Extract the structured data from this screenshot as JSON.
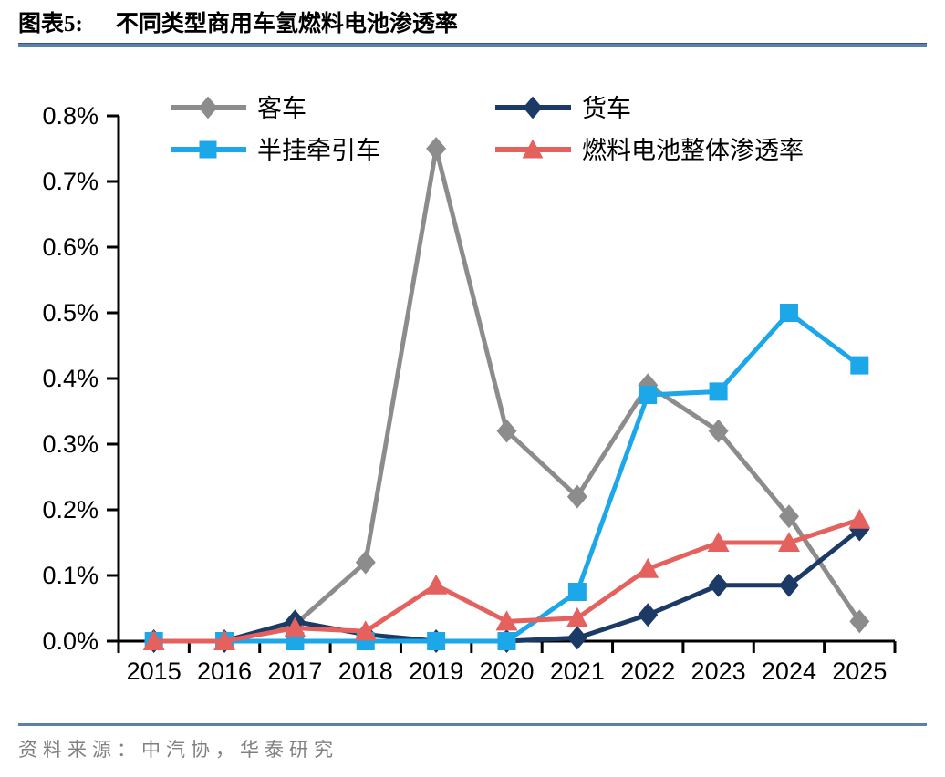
{
  "header": {
    "figure_label": "图表5:",
    "title": "不同类型商用车氢燃料电池渗透率"
  },
  "chart_data": {
    "type": "line",
    "title": "不同类型商用车氢燃料电池渗透率",
    "categories": [
      "2015",
      "2016",
      "2017",
      "2018",
      "2019",
      "2020",
      "2021",
      "2022",
      "2023",
      "2024",
      "2025"
    ],
    "y_ticks": [
      "0.0%",
      "0.1%",
      "0.2%",
      "0.3%",
      "0.4%",
      "0.5%",
      "0.6%",
      "0.7%",
      "0.8%"
    ],
    "ylim": [
      0,
      0.8
    ],
    "unit": "percent",
    "grid": false,
    "legend_position": "top-two-columns",
    "series": [
      {
        "id": "bus",
        "name": "客车",
        "color": "#8C8C8C",
        "marker": "diamond",
        "values": [
          0,
          0,
          0.025,
          0.12,
          0.75,
          0.32,
          0.22,
          0.39,
          0.32,
          0.19,
          0.03
        ]
      },
      {
        "id": "truck",
        "name": "货车",
        "color": "#1B3A66",
        "marker": "diamond",
        "values": [
          0,
          0,
          0.03,
          0.01,
          0,
          0,
          0.005,
          0.04,
          0.085,
          0.085,
          0.17
        ]
      },
      {
        "id": "semi-trailer-tractor",
        "name": "半挂牵引车",
        "color": "#1CA7E8",
        "marker": "square",
        "values": [
          0,
          0,
          0,
          0,
          0,
          0,
          0.075,
          0.375,
          0.38,
          0.5,
          0.42
        ]
      },
      {
        "id": "fuel-cell-overall",
        "name": "燃料电池整体渗透率",
        "color": "#E4615E",
        "marker": "triangle",
        "values": [
          0,
          0,
          0.02,
          0.015,
          0.085,
          0.03,
          0.035,
          0.11,
          0.15,
          0.15,
          0.185
        ]
      }
    ]
  },
  "footer": {
    "source": "资料来源：中汽协，华泰研究"
  },
  "style": {
    "accent_line_color": "#5B80AB",
    "axis_color": "#000000",
    "label_color": "#000000",
    "source_color": "#808080"
  }
}
